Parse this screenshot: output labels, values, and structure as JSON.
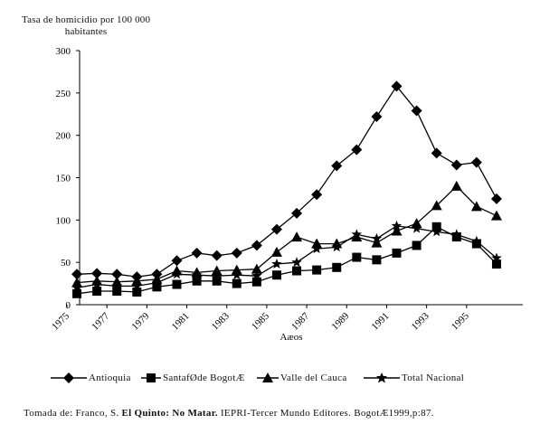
{
  "chart_data": {
    "type": "line",
    "ylabel_line1": "Tasa de homicidio por 100 000",
    "ylabel_line2": "habitantes",
    "xlabel": "Aæos",
    "ylim": [
      0,
      300
    ],
    "yticks": [
      0,
      50,
      100,
      150,
      200,
      250,
      300
    ],
    "xlim": [
      1975,
      1997
    ],
    "xticks": [
      1975,
      1977,
      1979,
      1981,
      1983,
      1985,
      1987,
      1989,
      1991,
      1993,
      1995
    ],
    "grid": false,
    "legend_position": "bottom",
    "x": [
      1975.5,
      1976.5,
      1977.5,
      1978.5,
      1979.5,
      1980.5,
      1981.5,
      1982.5,
      1983.5,
      1984.5,
      1985.5,
      1986.5,
      1987.5,
      1988.5,
      1989.5,
      1990.5,
      1991.5,
      1992.5,
      1993.5,
      1994.5,
      1995.5,
      1996.5
    ],
    "series": [
      {
        "name": "Antioquia",
        "marker": "diamond",
        "values": [
          36,
          37,
          36,
          33,
          36,
          52,
          61,
          58,
          61,
          70,
          89,
          108,
          130,
          164,
          183,
          222,
          258,
          229,
          179,
          165,
          168,
          125
        ]
      },
      {
        "name": "SantafØde BogotÆ",
        "marker": "square",
        "values": [
          13,
          16,
          16,
          15,
          21,
          24,
          28,
          28,
          25,
          27,
          35,
          40,
          41,
          44,
          56,
          53,
          61,
          70,
          92,
          80,
          72,
          48
        ]
      },
      {
        "name": "Valle del Cauca",
        "marker": "triangle",
        "values": [
          26,
          28,
          27,
          28,
          30,
          40,
          38,
          40,
          41,
          42,
          62,
          80,
          72,
          72,
          80,
          73,
          87,
          96,
          117,
          140,
          116,
          105
        ]
      },
      {
        "name": "Total Nacional",
        "marker": "star",
        "values": [
          20,
          24,
          22,
          22,
          26,
          36,
          35,
          34,
          35,
          34,
          48,
          50,
          66,
          68,
          83,
          78,
          93,
          90,
          86,
          83,
          75,
          55
        ]
      }
    ]
  },
  "caption": {
    "prefix": "Tomada de: Franco, S. ",
    "title": "El Quinto: No Matar.",
    "suffix": " IEPRI-Tercer Mundo Editores. BogotÆ1999,p:87."
  }
}
